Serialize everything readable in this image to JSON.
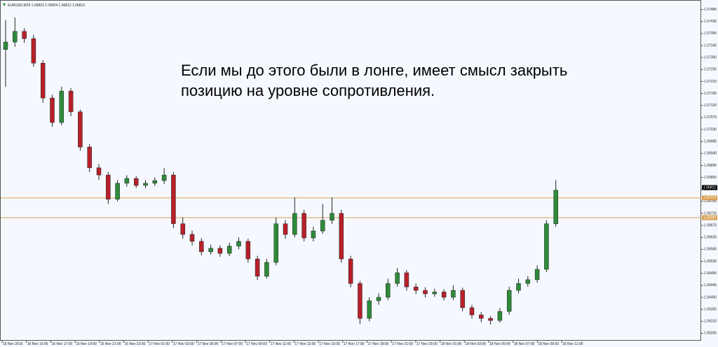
{
  "chart_data": {
    "type": "candlestick",
    "header": "EURUSD,M15  1.06823 1.06824 1.06812 1.06812",
    "annotation": [
      "Если мы до этого были в лонге, имеет смысл закрыть",
      "позицию на уровне сопротивления."
    ],
    "open": [
      1.0733,
      1.07358,
      1.07398,
      1.07371,
      1.07279,
      1.07148,
      1.07056,
      1.07174,
      1.07096,
      1.06964,
      1.06886,
      1.06859,
      1.06768,
      1.06828,
      1.06846,
      1.0682,
      1.06828,
      1.06838,
      1.06859,
      1.06676,
      1.06636,
      1.0661,
      1.06571,
      1.06584,
      1.06565,
      1.06592,
      1.0661,
      1.06544,
      1.06479,
      1.06531,
      1.06676,
      1.06636,
      1.06715,
      1.06623,
      1.06649,
      1.06689,
      1.06715,
      1.06544,
      1.06452,
      1.06321,
      1.06387,
      1.064,
      1.06452,
      1.06492,
      1.06439,
      1.06426,
      1.06413,
      1.0642,
      1.064,
      1.06426,
      1.06361,
      1.06334,
      1.06321,
      1.06313,
      1.06347,
      1.06426,
      1.06452,
      1.06466,
      1.06505,
      1.06676
    ],
    "high": [
      1.0744,
      1.0745,
      1.0741,
      1.07385,
      1.0729,
      1.0716,
      1.0719,
      1.07185,
      1.07105,
      1.06975,
      1.069,
      1.0687,
      1.0684,
      1.06858,
      1.06855,
      1.0684,
      1.0685,
      1.06885,
      1.0687,
      1.067,
      1.0665,
      1.06622,
      1.06598,
      1.06596,
      1.06605,
      1.06625,
      1.0662,
      1.06556,
      1.06545,
      1.067,
      1.0669,
      1.06775,
      1.06728,
      1.06665,
      1.0675,
      1.06775,
      1.06728,
      1.06556,
      1.06462,
      1.064,
      1.06415,
      1.0647,
      1.0651,
      1.06502,
      1.06452,
      1.06438,
      1.06432,
      1.0643,
      1.06445,
      1.06436,
      1.06372,
      1.06345,
      1.0633,
      1.0636,
      1.0644,
      1.0647,
      1.0648,
      1.0652,
      1.0669,
      1.0684
    ],
    "low": [
      1.0719,
      1.0734,
      1.07355,
      1.07265,
      1.0713,
      1.0704,
      1.07045,
      1.0708,
      1.0695,
      1.0687,
      1.0684,
      1.0675,
      1.0676,
      1.06815,
      1.0681,
      1.0681,
      1.06818,
      1.06825,
      1.0666,
      1.0662,
      1.06595,
      1.06558,
      1.0656,
      1.06552,
      1.06555,
      1.0658,
      1.0653,
      1.06465,
      1.0647,
      1.0652,
      1.0662,
      1.06625,
      1.0661,
      1.0661,
      1.06638,
      1.06675,
      1.0653,
      1.06438,
      1.063,
      1.0631,
      1.06372,
      1.0639,
      1.0644,
      1.06425,
      1.06412,
      1.064,
      1.06402,
      1.06388,
      1.0639,
      1.06348,
      1.0632,
      1.06306,
      1.06298,
      1.06305,
      1.06335,
      1.06415,
      1.0644,
      1.06455,
      1.06495,
      1.06665
    ],
    "close": [
      1.07358,
      1.07398,
      1.07371,
      1.07279,
      1.07148,
      1.07056,
      1.07174,
      1.07096,
      1.06964,
      1.06886,
      1.06859,
      1.06768,
      1.06828,
      1.06846,
      1.0682,
      1.06828,
      1.06838,
      1.06859,
      1.06676,
      1.06636,
      1.0661,
      1.06571,
      1.06584,
      1.06565,
      1.06592,
      1.0661,
      1.06544,
      1.06479,
      1.06531,
      1.06676,
      1.06636,
      1.06715,
      1.06623,
      1.06649,
      1.06689,
      1.06715,
      1.06544,
      1.06452,
      1.06321,
      1.06387,
      1.064,
      1.06452,
      1.06492,
      1.06439,
      1.06426,
      1.06413,
      1.0642,
      1.064,
      1.06426,
      1.06361,
      1.06334,
      1.06321,
      1.06313,
      1.06347,
      1.06426,
      1.06452,
      1.06466,
      1.06505,
      1.06676,
      1.06802
    ],
    "up_color": "#2e8b3a",
    "down_color": "#b8202a",
    "wick_color": "#222222",
    "levels": [
      1.06773,
      1.06699
    ],
    "level_color": "#d9a050",
    "bid": 1.06812,
    "ylim": [
      1.06245,
      1.075
    ],
    "yticks": [
      {
        "value": 1.0748,
        "label": "1.07480"
      },
      1.07435,
      {
        "value": 1.0739,
        "label": "1.07390"
      },
      1.07345,
      {
        "value": 1.073,
        "label": "1.07300"
      },
      1.07255,
      {
        "value": 1.0721,
        "label": "1.07210"
      },
      1.07165,
      {
        "value": 1.0712,
        "label": "1.07120"
      },
      1.07075,
      {
        "value": 1.0703,
        "label": "1.07030"
      },
      1.06985,
      {
        "value": 1.0694,
        "label": "1.06940"
      },
      1.06895,
      {
        "value": 1.0685,
        "label": "1.06850"
      },
      1.06805,
      {
        "value": 1.0676,
        "label": "1.06760"
      },
      1.06715,
      {
        "value": 1.0667,
        "label": "1.06670"
      },
      1.06625,
      {
        "value": 1.0658,
        "label": "1.06580"
      },
      1.06535,
      {
        "value": 1.0649,
        "label": "1.06490"
      },
      1.06445,
      {
        "value": 1.064,
        "label": "1.06400"
      },
      1.06355,
      {
        "value": 1.0631,
        "label": "1.06310"
      },
      1.06265
    ],
    "xticks": [
      "16 Nov 2016",
      "16 Nov 15:00",
      "16 Nov 17:00",
      "16 Nov 19:00",
      "16 Nov 21:00",
      "16 Nov 23:00",
      "17 Nov 01:00",
      "17 Nov 03:00",
      "17 Nov 05:00",
      "17 Nov 07:00",
      "17 Nov 09:00",
      "17 Nov 11:00",
      "17 Nov 13:00",
      "17 Nov 15:00",
      "17 Nov 17:00",
      "17 Nov 19:00",
      "17 Nov 21:00",
      "17 Nov 23:00",
      "18 Nov 01:00",
      "18 Nov 03:00",
      "18 Nov 05:00",
      "18 Nov 07:00",
      "18 Nov 09:00",
      "18 Nov 11:00"
    ]
  }
}
